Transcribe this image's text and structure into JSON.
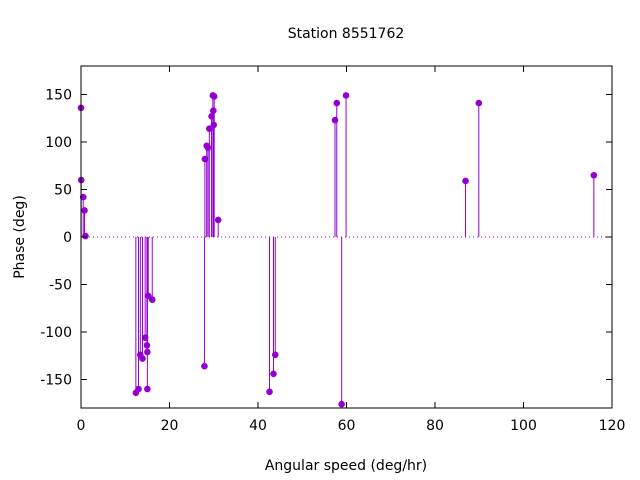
{
  "chart_data": {
    "type": "scatter",
    "style": "impulses-with-points",
    "title": "Station 8551762",
    "xlabel": "Angular speed (deg/hr)",
    "ylabel": "Phase (deg)",
    "xlim": [
      0,
      120
    ],
    "ylim": [
      -180,
      180
    ],
    "xticks": [
      0,
      20,
      40,
      60,
      80,
      100,
      120
    ],
    "yticks": [
      -150,
      -100,
      -50,
      0,
      50,
      100,
      150
    ],
    "grid": false,
    "legend": "none",
    "zero_line": true,
    "color": "#9400d3",
    "points": [
      {
        "x": 0.0,
        "y": 136
      },
      {
        "x": 0.04,
        "y": 60
      },
      {
        "x": 0.5,
        "y": 42
      },
      {
        "x": 0.8,
        "y": 28
      },
      {
        "x": 1.0,
        "y": 1
      },
      {
        "x": 12.4,
        "y": -164
      },
      {
        "x": 13.0,
        "y": -160
      },
      {
        "x": 13.4,
        "y": -124
      },
      {
        "x": 13.9,
        "y": -128
      },
      {
        "x": 14.5,
        "y": -106
      },
      {
        "x": 14.9,
        "y": -114
      },
      {
        "x": 15.0,
        "y": -160
      },
      {
        "x": 15.0,
        "y": -121
      },
      {
        "x": 15.2,
        "y": -62
      },
      {
        "x": 16.1,
        "y": -66
      },
      {
        "x": 27.9,
        "y": -136
      },
      {
        "x": 28.0,
        "y": 82
      },
      {
        "x": 28.4,
        "y": 96
      },
      {
        "x": 28.7,
        "y": 94
      },
      {
        "x": 29.0,
        "y": 114
      },
      {
        "x": 29.5,
        "y": 127
      },
      {
        "x": 29.8,
        "y": 149
      },
      {
        "x": 29.9,
        "y": 133
      },
      {
        "x": 30.0,
        "y": 118
      },
      {
        "x": 30.1,
        "y": 148
      },
      {
        "x": 31.0,
        "y": 18
      },
      {
        "x": 42.6,
        "y": -163
      },
      {
        "x": 43.5,
        "y": -144
      },
      {
        "x": 43.9,
        "y": -124
      },
      {
        "x": 57.4,
        "y": 123
      },
      {
        "x": 57.8,
        "y": 141
      },
      {
        "x": 58.9,
        "y": -176
      },
      {
        "x": 59.9,
        "y": 149
      },
      {
        "x": 86.9,
        "y": 59
      },
      {
        "x": 89.9,
        "y": 141
      },
      {
        "x": 115.9,
        "y": 65
      }
    ]
  }
}
